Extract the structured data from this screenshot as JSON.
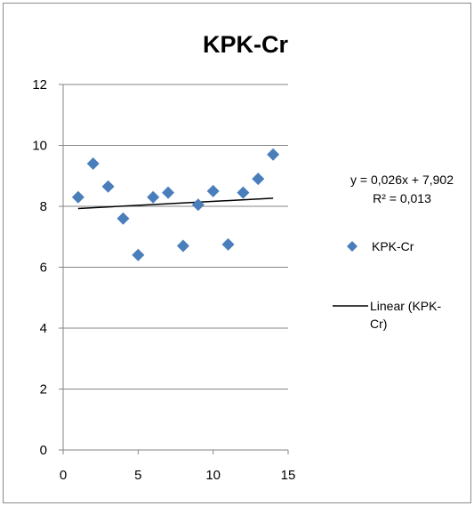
{
  "chart_data": {
    "type": "scatter",
    "title": "KPK-Cr",
    "xlabel": "",
    "ylabel": "",
    "xlim": [
      0,
      15
    ],
    "ylim": [
      0,
      12
    ],
    "x_ticks": [
      "0",
      "5",
      "10",
      "15"
    ],
    "y_ticks": [
      "0",
      "2",
      "4",
      "6",
      "8",
      "10",
      "12"
    ],
    "grid": "horizontal",
    "legend_position": "right",
    "series": [
      {
        "name": "KPK-Cr",
        "marker": "diamond",
        "color": "#4a7ebb",
        "x": [
          1,
          2,
          3,
          4,
          5,
          6,
          7,
          8,
          9,
          10,
          11,
          12,
          13,
          14
        ],
        "y": [
          8.3,
          9.4,
          8.65,
          7.6,
          6.4,
          8.3,
          8.45,
          6.7,
          8.05,
          8.5,
          6.75,
          8.45,
          8.9,
          9.7
        ]
      }
    ],
    "trendline": {
      "name": "Linear (KPK-Cr)",
      "legend_lines": [
        "Linear (KPK-",
        "Cr)"
      ],
      "slope": 0.026,
      "intercept": 7.902,
      "x_range": [
        1,
        14
      ],
      "color": "#000000",
      "equation": "y = 0,026x + 7,902",
      "r_squared": "R² = 0,013"
    },
    "legend": {
      "marker_label": "KPK-Cr"
    }
  }
}
